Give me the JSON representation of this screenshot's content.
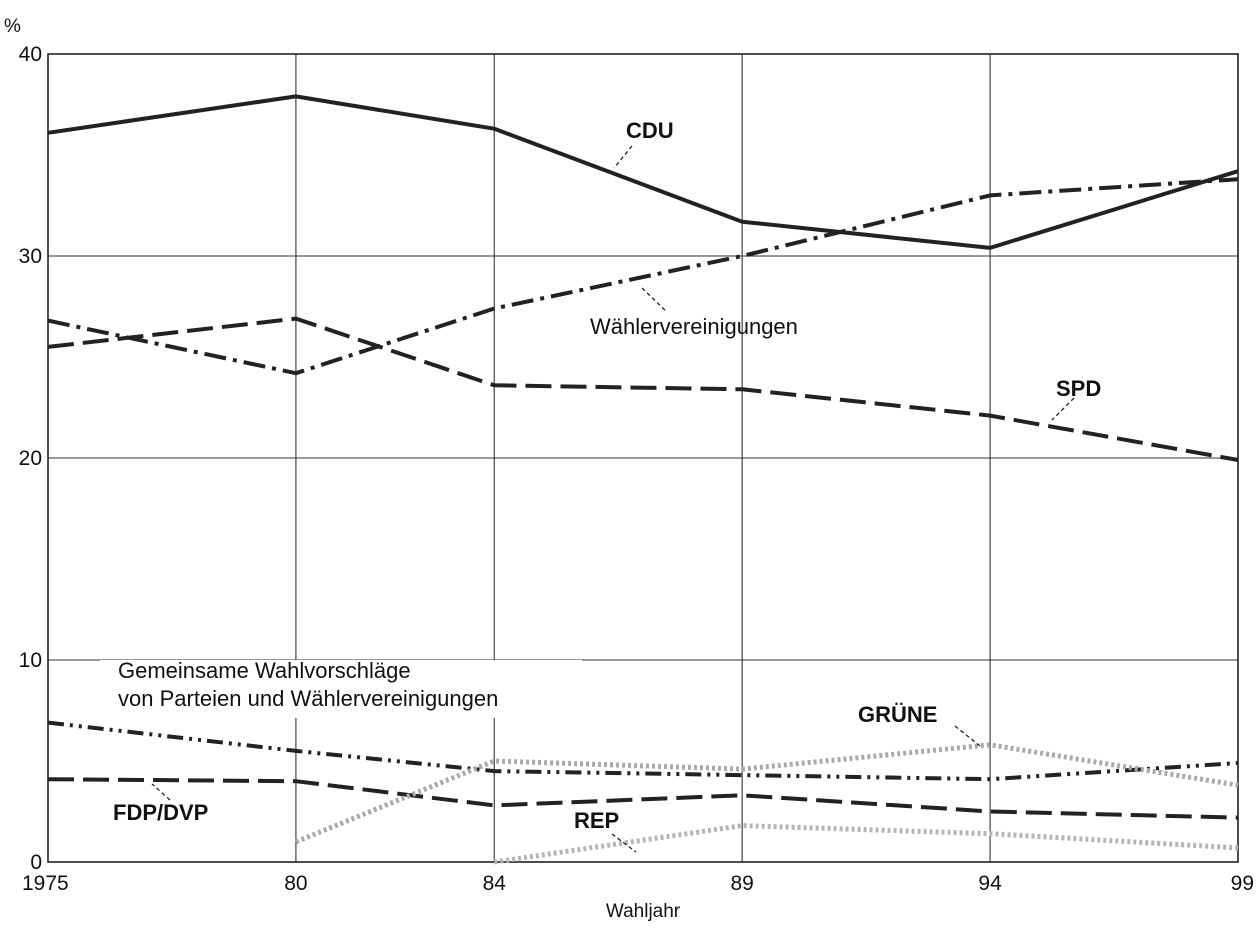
{
  "chart_data": {
    "type": "line",
    "xlabel": "Wahljahr",
    "ylabel": "%",
    "x": [
      1975,
      1980,
      1984,
      1989,
      1994,
      1999
    ],
    "x_tick_labels": [
      "1975",
      "80",
      "84",
      "89",
      "94",
      "99"
    ],
    "y_ticks": [
      "0",
      "10",
      "20",
      "30",
      "40"
    ],
    "ylim": [
      0,
      40
    ],
    "grid": true,
    "series": [
      {
        "name": "CDU",
        "style": "solid",
        "color": "#222222",
        "values": [
          36.1,
          37.9,
          36.3,
          31.7,
          30.4,
          34.2
        ]
      },
      {
        "name": "Wählervereinigungen",
        "style": "dashdot",
        "color": "#222222",
        "values": [
          26.8,
          24.2,
          27.4,
          30.0,
          33.0,
          33.8
        ]
      },
      {
        "name": "SPD",
        "style": "dashed",
        "color": "#222222",
        "values": [
          25.5,
          26.9,
          23.6,
          23.4,
          22.1,
          19.9
        ]
      },
      {
        "name": "Gemeinsame Wahlvorschläge\nvon Parteien und Wählervereinigungen",
        "style": "dashdotdot",
        "color": "#222222",
        "values": [
          6.9,
          5.5,
          4.5,
          4.3,
          4.1,
          4.9
        ]
      },
      {
        "name": "FDP/DVP",
        "style": "dashed",
        "color": "#222222",
        "values": [
          4.1,
          4.0,
          2.8,
          3.3,
          2.5,
          2.2
        ]
      },
      {
        "name": "GRÜNE",
        "style": "dotted",
        "color": "#aaaaaa",
        "values": [
          null,
          1.0,
          5.0,
          4.6,
          5.8,
          3.8
        ]
      },
      {
        "name": "REP",
        "style": "dotted",
        "color": "#b5b5b5",
        "values": [
          null,
          null,
          0.0,
          1.8,
          1.4,
          0.7
        ]
      }
    ],
    "annotations": [
      {
        "text": "CDU",
        "bold": true
      },
      {
        "text": "Wählervereinigungen",
        "bold": false
      },
      {
        "text": "SPD",
        "bold": true
      },
      {
        "line1": "Gemeinsame Wahlvorschläge",
        "line2": "von Parteien und Wählervereinigungen",
        "bold": false
      },
      {
        "text": "GRÜNE",
        "bold": true
      },
      {
        "text": "FDP/DVP",
        "bold": true
      },
      {
        "text": "REP",
        "bold": true
      }
    ]
  }
}
